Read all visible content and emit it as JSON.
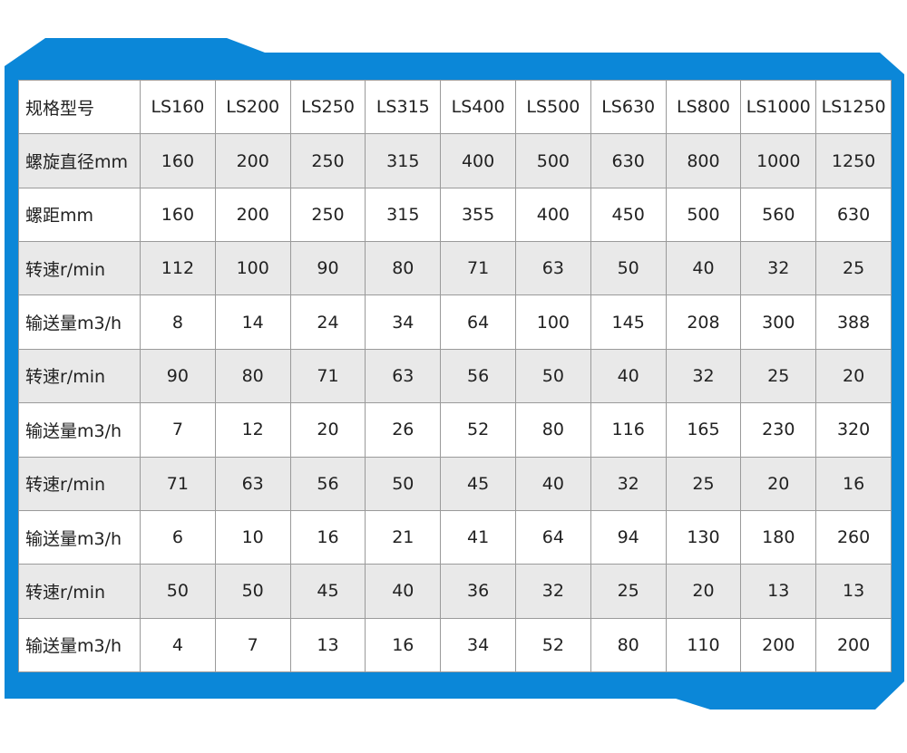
{
  "colors": {
    "frame": "#0b87d8",
    "row_alt": "#e9e9e9",
    "grid": "#9a9a9a"
  },
  "table": {
    "header": {
      "label": "规格型号",
      "values": [
        "LS160",
        "LS200",
        "LS250",
        "LS315",
        "LS400",
        "LS500",
        "LS630",
        "LS800",
        "LS1000",
        "LS1250"
      ]
    },
    "rows": [
      {
        "label": "螺旋直径mm",
        "values": [
          "160",
          "200",
          "250",
          "315",
          "400",
          "500",
          "630",
          "800",
          "1000",
          "1250"
        ]
      },
      {
        "label": "螺距mm",
        "values": [
          "160",
          "200",
          "250",
          "315",
          "355",
          "400",
          "450",
          "500",
          "560",
          "630"
        ]
      },
      {
        "label": "转速r/min",
        "values": [
          "112",
          "100",
          "90",
          "80",
          "71",
          "63",
          "50",
          "40",
          "32",
          "25"
        ]
      },
      {
        "label": "输送量m3/h",
        "values": [
          "8",
          "14",
          "24",
          "34",
          "64",
          "100",
          "145",
          "208",
          "300",
          "388"
        ]
      },
      {
        "label": "转速r/min",
        "values": [
          "90",
          "80",
          "71",
          "63",
          "56",
          "50",
          "40",
          "32",
          "25",
          "20"
        ]
      },
      {
        "label": "输送量m3/h",
        "values": [
          "7",
          "12",
          "20",
          "26",
          "52",
          "80",
          "116",
          "165",
          "230",
          "320"
        ]
      },
      {
        "label": "转速r/min",
        "values": [
          "71",
          "63",
          "56",
          "50",
          "45",
          "40",
          "32",
          "25",
          "20",
          "16"
        ]
      },
      {
        "label": "输送量m3/h",
        "values": [
          "6",
          "10",
          "16",
          "21",
          "41",
          "64",
          "94",
          "130",
          "180",
          "260"
        ]
      },
      {
        "label": "转速r/min",
        "values": [
          "50",
          "50",
          "45",
          "40",
          "36",
          "32",
          "25",
          "20",
          "13",
          "13"
        ]
      },
      {
        "label": "输送量m3/h",
        "values": [
          "4",
          "7",
          "13",
          "16",
          "34",
          "52",
          "80",
          "110",
          "200",
          "200"
        ]
      }
    ]
  }
}
